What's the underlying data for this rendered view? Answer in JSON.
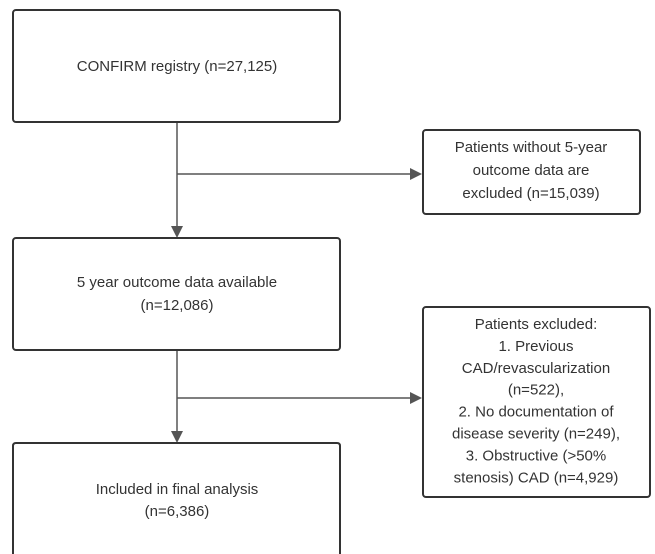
{
  "nodes": [
    {
      "lines": [
        "CONFIRM registry (n=27,125)"
      ]
    },
    {
      "lines": [
        "Patients without 5-year",
        "outcome data are",
        "excluded (n=15,039)"
      ]
    },
    {
      "lines": [
        "5 year outcome data available",
        "(n=12,086)"
      ]
    },
    {
      "lines": [
        "Patients excluded:",
        "1. Previous",
        "CAD/revascularization",
        "(n=522),",
        "2. No documentation of",
        "disease severity (n=249),",
        "3. Obstructive (>50%",
        "stenosis) CAD (n=4,929)"
      ]
    },
    {
      "lines": [
        "Included in final analysis",
        "(n=6,386)"
      ]
    }
  ]
}
